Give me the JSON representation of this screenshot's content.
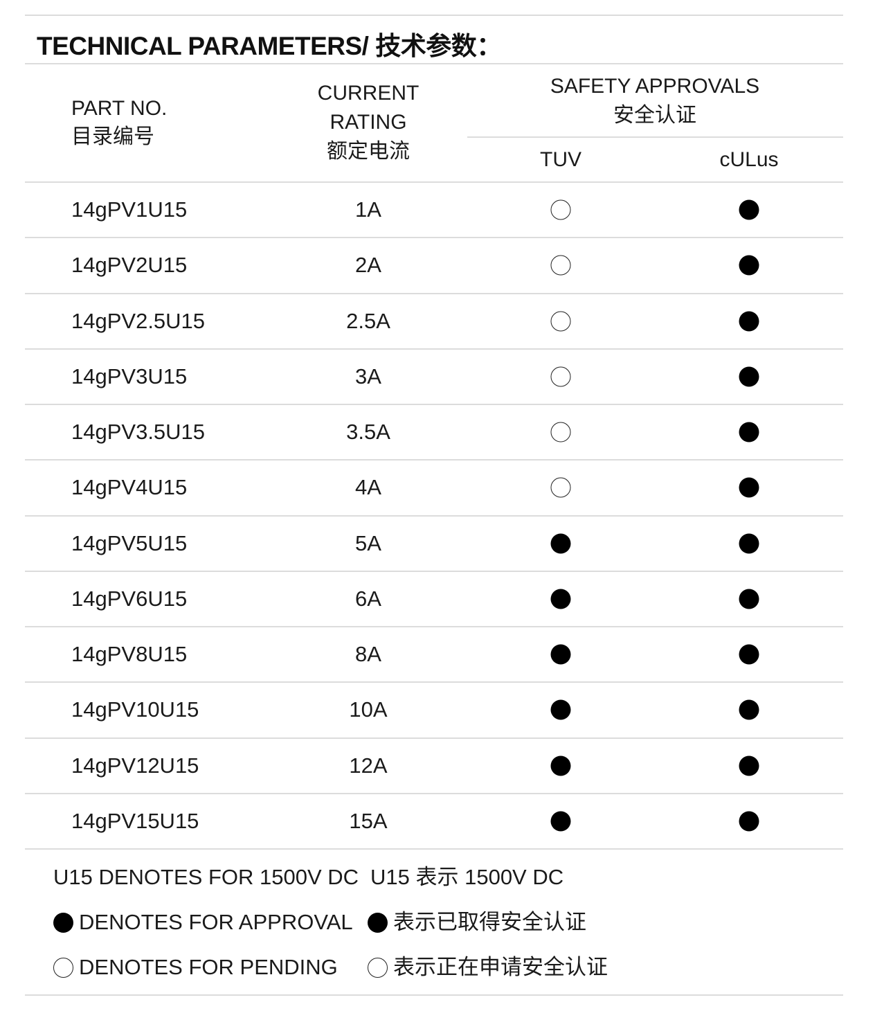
{
  "title": "TECHNICAL PARAMETERS/ 技术参数：",
  "header": {
    "part_no_en": "PART  NO.",
    "part_no_cn": "目录编号",
    "current_en_1": "CURRENT",
    "current_en_2": "RATING",
    "current_cn": "额定电流",
    "safety_en": "SAFETY APPROVALS",
    "safety_cn": "安全认证",
    "tuv": "TUV",
    "culus": "cULus"
  },
  "legend_colors": {
    "approved": "#000000",
    "pending": "#ffffff"
  },
  "rows": [
    {
      "part": "14gPV1U15",
      "current": "1A",
      "tuv": "pending",
      "culus": "approved"
    },
    {
      "part": "14gPV2U15",
      "current": "2A",
      "tuv": "pending",
      "culus": "approved"
    },
    {
      "part": "14gPV2.5U15",
      "current": "2.5A",
      "tuv": "pending",
      "culus": "approved"
    },
    {
      "part": "14gPV3U15",
      "current": "3A",
      "tuv": "pending",
      "culus": "approved"
    },
    {
      "part": "14gPV3.5U15",
      "current": "3.5A",
      "tuv": "pending",
      "culus": "approved"
    },
    {
      "part": "14gPV4U15",
      "current": "4A",
      "tuv": "pending",
      "culus": "approved"
    },
    {
      "part": "14gPV5U15",
      "current": "5A",
      "tuv": "approved",
      "culus": "approved"
    },
    {
      "part": "14gPV6U15",
      "current": "6A",
      "tuv": "approved",
      "culus": "approved"
    },
    {
      "part": "14gPV8U15",
      "current": "8A",
      "tuv": "approved",
      "culus": "approved"
    },
    {
      "part": "14gPV10U15",
      "current": "10A",
      "tuv": "approved",
      "culus": "approved"
    },
    {
      "part": "14gPV12U15",
      "current": "12A",
      "tuv": "approved",
      "culus": "approved"
    },
    {
      "part": "14gPV15U15",
      "current": "15A",
      "tuv": "approved",
      "culus": "approved"
    }
  ],
  "notes": {
    "u15_en": "U15 DENOTES FOR 1500V DC",
    "u15_cn": "U15 表示 1500V DC",
    "approval_en": "DENOTES FOR APPROVAL",
    "approval_cn": "表示已取得安全认证",
    "pending_en": "DENOTES FOR PENDING",
    "pending_cn": "表示正在申请安全认证"
  }
}
